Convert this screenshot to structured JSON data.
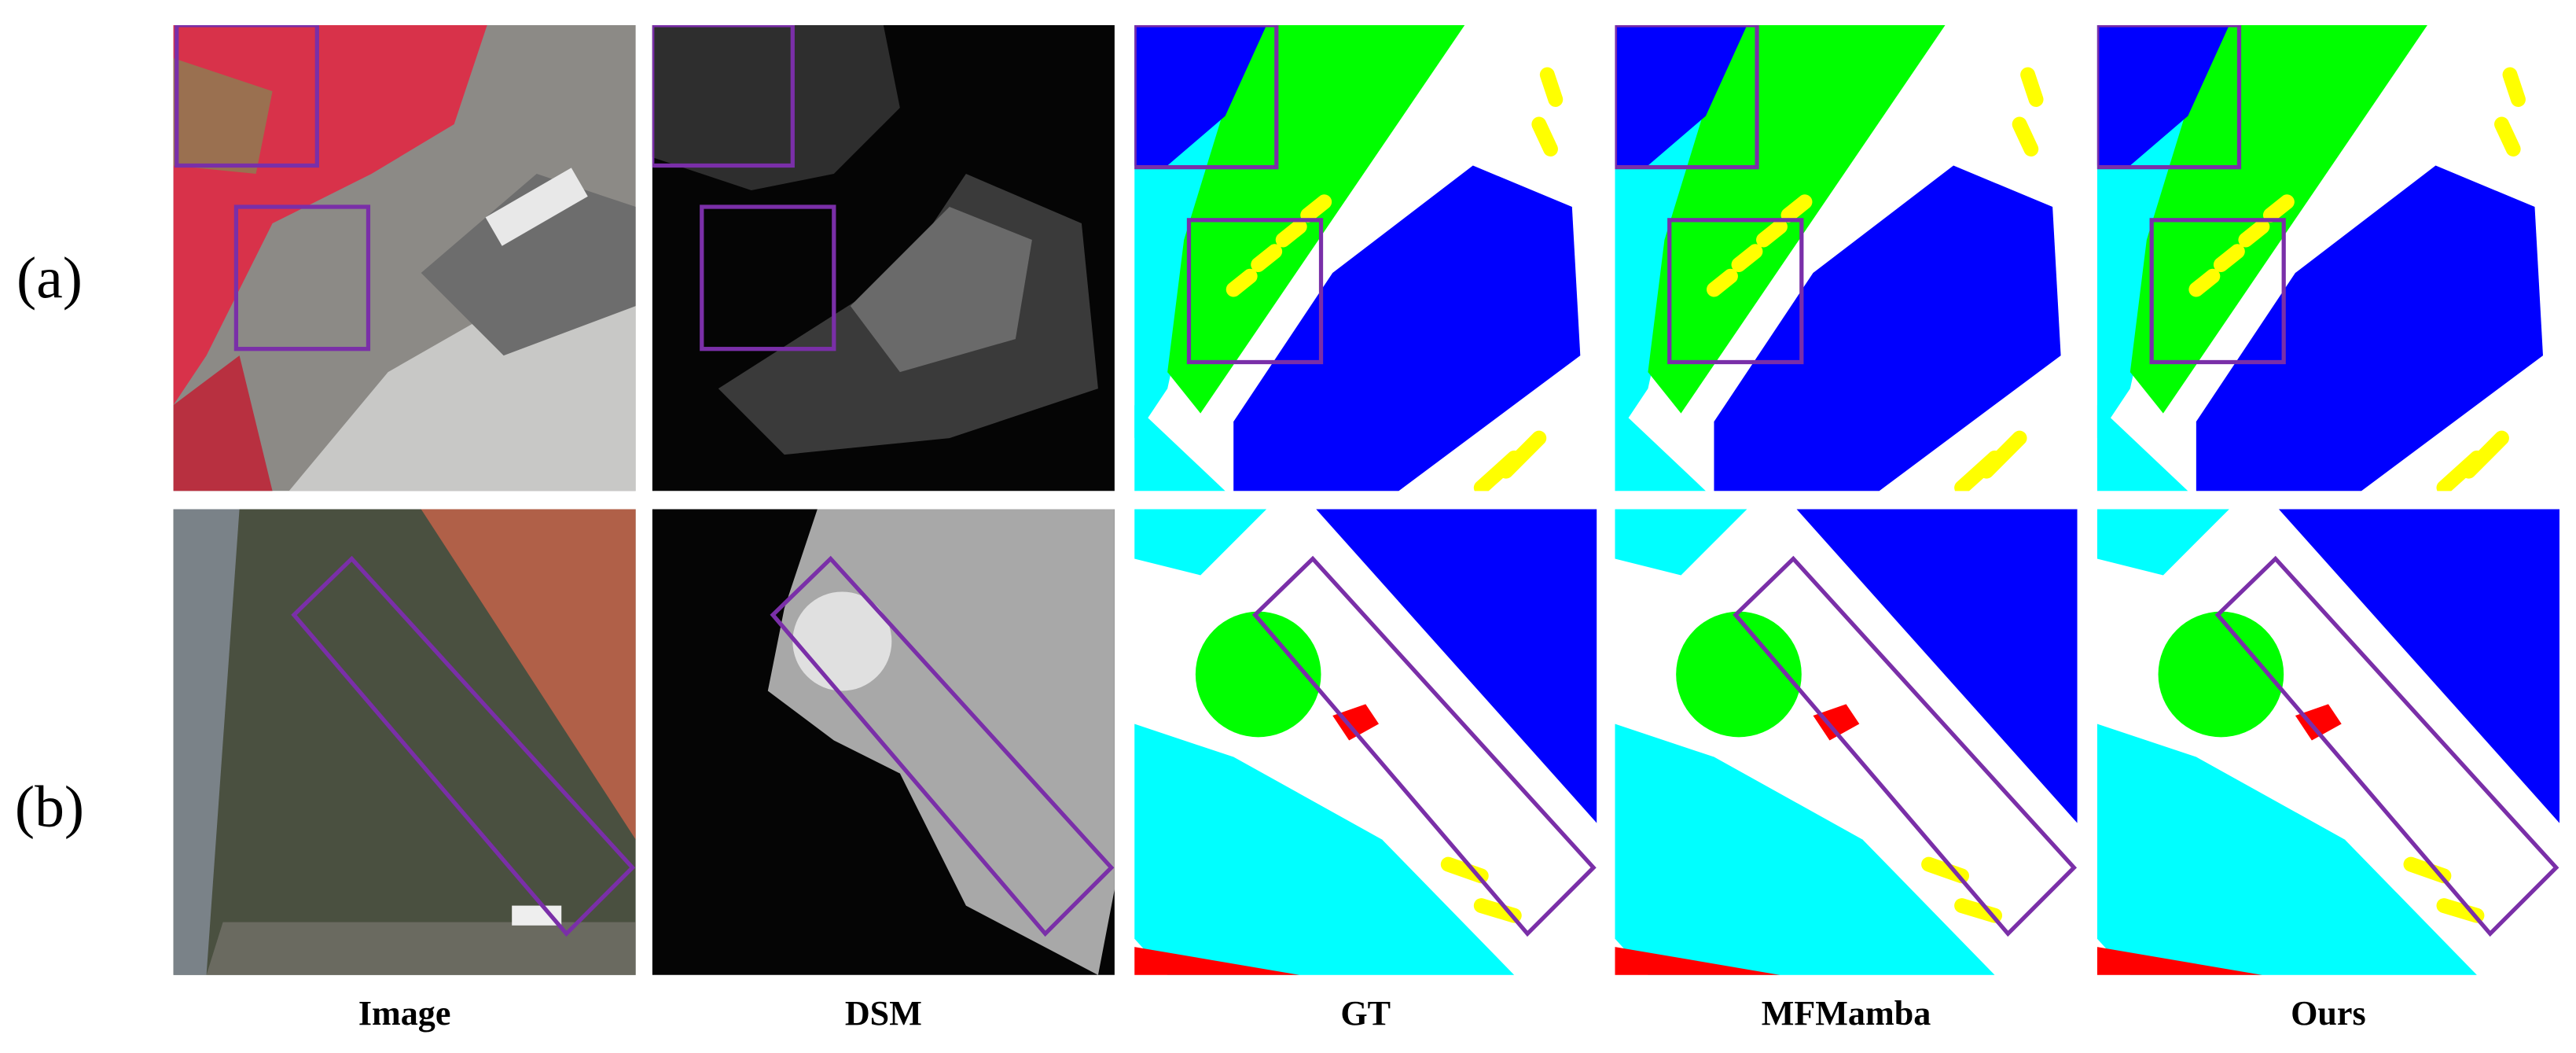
{
  "row_labels": [
    "(a)",
    "(b)"
  ],
  "columns": [
    "Image",
    "DSM",
    "GT",
    "MFMamba",
    "Ours"
  ]
}
